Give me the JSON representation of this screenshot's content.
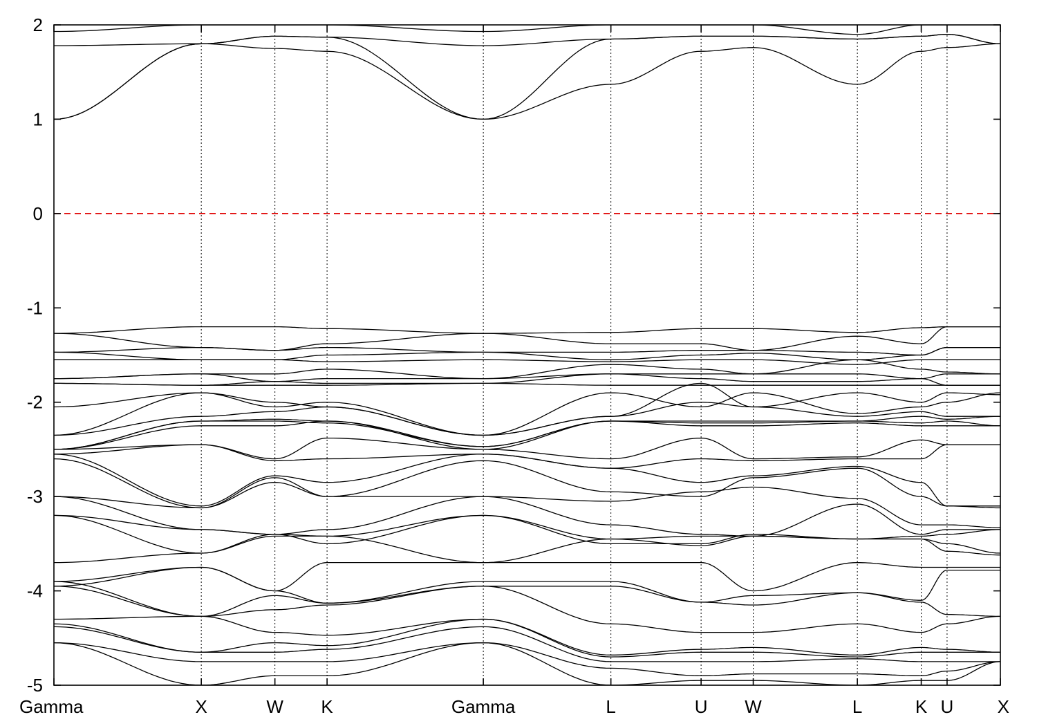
{
  "chart_data": {
    "type": "line",
    "title": "",
    "xlabel": "",
    "ylabel": "",
    "ylim": [
      -5,
      2
    ],
    "yticks": [
      "2",
      "1",
      "0",
      "-1",
      "-2",
      "-3",
      "-4",
      "-5"
    ],
    "xlim": [
      0,
      1
    ],
    "high_symmetry_points": [
      {
        "label": "Gamma",
        "x": 0.0
      },
      {
        "label": "X",
        "x": 0.1557
      },
      {
        "label": "W",
        "x": 0.2335
      },
      {
        "label": "K",
        "x": 0.2886
      },
      {
        "label": "Gamma",
        "x": 0.4537
      },
      {
        "label": "L",
        "x": 0.5885
      },
      {
        "label": "U",
        "x": 0.6838
      },
      {
        "label": "W",
        "x": 0.7389
      },
      {
        "label": "L",
        "x": 0.8489
      },
      {
        "label": "K",
        "x": 0.9164
      },
      {
        "label": "U",
        "x": 0.9437
      },
      {
        "label": "X",
        "x": 1.0
      }
    ],
    "fermi_level": {
      "value": 0,
      "color": "#e00000",
      "style": "dashed"
    },
    "grid": "vertical dotted lines at high-symmetry points",
    "series": [
      {
        "values": [
          1.0,
          1.8,
          1.75,
          1.72,
          1.0,
          1.37,
          1.72,
          1.76,
          1.37,
          1.72,
          1.76,
          1.8
        ]
      },
      {
        "values": [
          1.0,
          1.8,
          1.88,
          1.87,
          1.0,
          1.85,
          1.88,
          1.88,
          1.85,
          1.88,
          1.9,
          1.8
        ]
      },
      {
        "values": [
          1.78,
          1.8,
          1.88,
          1.87,
          1.78,
          1.85,
          1.88,
          1.88,
          1.85,
          1.88,
          1.9,
          1.8
        ]
      },
      {
        "values": [
          1.93,
          2.0,
          2.0,
          2.0,
          1.93,
          2.0,
          2.0,
          2.0,
          1.9,
          2.0,
          2.0,
          2.0
        ]
      },
      {
        "values": [
          -1.27,
          -1.2,
          -1.2,
          -1.22,
          -1.27,
          -1.26,
          -1.22,
          -1.22,
          -1.26,
          -1.21,
          -1.2,
          -1.2
        ]
      },
      {
        "values": [
          -1.27,
          -1.42,
          -1.45,
          -1.38,
          -1.27,
          -1.38,
          -1.38,
          -1.45,
          -1.3,
          -1.38,
          -1.2,
          -1.2
        ]
      },
      {
        "values": [
          -1.47,
          -1.42,
          -1.45,
          -1.42,
          -1.47,
          -1.47,
          -1.45,
          -1.45,
          -1.47,
          -1.5,
          -1.42,
          -1.42
        ]
      },
      {
        "values": [
          -1.47,
          -1.55,
          -1.55,
          -1.5,
          -1.47,
          -1.55,
          -1.5,
          -1.48,
          -1.55,
          -1.5,
          -1.42,
          -1.42
        ]
      },
      {
        "values": [
          -1.55,
          -1.55,
          -1.55,
          -1.57,
          -1.55,
          -1.57,
          -1.55,
          -1.55,
          -1.6,
          -1.55,
          -1.55,
          -1.55
        ]
      },
      {
        "values": [
          -1.75,
          -1.7,
          -1.7,
          -1.65,
          -1.75,
          -1.6,
          -1.65,
          -1.7,
          -1.55,
          -1.65,
          -1.68,
          -1.7
        ]
      },
      {
        "values": [
          -1.75,
          -1.7,
          -1.78,
          -1.75,
          -1.75,
          -1.7,
          -1.7,
          -1.7,
          -1.7,
          -1.75,
          -1.7,
          -1.7
        ]
      },
      {
        "values": [
          -1.8,
          -1.82,
          -1.78,
          -1.8,
          -1.8,
          -1.7,
          -1.75,
          -1.78,
          -1.78,
          -1.75,
          -1.82,
          -1.82
        ]
      },
      {
        "values": [
          -1.8,
          -1.82,
          -1.82,
          -1.82,
          -1.8,
          -1.82,
          -1.82,
          -1.82,
          -1.82,
          -1.82,
          -1.82,
          -1.82
        ]
      },
      {
        "values": [
          -2.05,
          -1.9,
          -2.0,
          -2.05,
          -2.35,
          -1.9,
          -2.05,
          -1.9,
          -2.12,
          -2.05,
          -2.0,
          -1.9
        ]
      },
      {
        "values": [
          -2.35,
          -1.9,
          -2.05,
          -2.0,
          -2.35,
          -2.15,
          -1.8,
          -2.05,
          -1.9,
          -2.0,
          -1.9,
          -1.92
        ]
      },
      {
        "values": [
          -2.35,
          -2.15,
          -2.1,
          -2.05,
          -2.35,
          -2.15,
          -2.0,
          -2.05,
          -2.15,
          -2.1,
          -2.15,
          -2.15
        ]
      },
      {
        "values": [
          -2.5,
          -2.2,
          -2.18,
          -2.2,
          -2.47,
          -2.2,
          -2.2,
          -2.2,
          -2.2,
          -2.15,
          -2.18,
          -2.15
        ]
      },
      {
        "values": [
          -2.5,
          -2.2,
          -2.2,
          -2.22,
          -2.47,
          -2.2,
          -2.22,
          -2.22,
          -2.2,
          -2.22,
          -2.2,
          -2.25
        ]
      },
      {
        "values": [
          -2.5,
          -2.25,
          -2.25,
          -2.2,
          -2.5,
          -2.2,
          -2.25,
          -2.25,
          -2.22,
          -2.25,
          -2.25,
          -2.25
        ]
      },
      {
        "values": [
          -2.5,
          -2.45,
          -2.6,
          -2.38,
          -2.5,
          -2.6,
          -2.38,
          -2.6,
          -2.58,
          -2.4,
          -2.45,
          -2.45
        ]
      },
      {
        "values": [
          -2.55,
          -2.45,
          -2.62,
          -2.6,
          -2.55,
          -2.7,
          -2.6,
          -2.62,
          -2.6,
          -2.6,
          -2.45,
          -2.45
        ]
      },
      {
        "values": [
          -2.55,
          -3.1,
          -2.78,
          -2.85,
          -2.55,
          -2.7,
          -2.85,
          -2.78,
          -2.68,
          -2.85,
          -3.1,
          -3.1
        ]
      },
      {
        "values": [
          -2.6,
          -3.12,
          -2.8,
          -3.0,
          -2.62,
          -2.95,
          -3.0,
          -2.8,
          -2.7,
          -3.0,
          -3.1,
          -3.12
        ]
      },
      {
        "values": [
          -3.0,
          -3.12,
          -2.85,
          -3.0,
          -3.0,
          -3.05,
          -2.95,
          -2.9,
          -3.02,
          -3.3,
          -3.3,
          -3.33
        ]
      },
      {
        "values": [
          -3.0,
          -3.35,
          -3.4,
          -3.35,
          -3.0,
          -3.3,
          -3.4,
          -3.42,
          -3.08,
          -3.4,
          -3.35,
          -3.35
        ]
      },
      {
        "values": [
          -3.2,
          -3.35,
          -3.4,
          -3.42,
          -3.2,
          -3.45,
          -3.42,
          -3.42,
          -3.45,
          -3.42,
          -3.4,
          -3.35
        ]
      },
      {
        "values": [
          -3.2,
          -3.6,
          -3.4,
          -3.5,
          -3.2,
          -3.5,
          -3.5,
          -3.4,
          -3.45,
          -3.45,
          -3.5,
          -3.6
        ]
      },
      {
        "values": [
          -3.7,
          -3.6,
          -3.42,
          -3.42,
          -3.7,
          -3.45,
          -3.52,
          -3.42,
          -3.45,
          -3.45,
          -3.58,
          -3.62
        ]
      },
      {
        "values": [
          -3.9,
          -3.75,
          -4.0,
          -3.7,
          -3.7,
          -3.7,
          -3.7,
          -4.0,
          -3.7,
          -3.75,
          -3.75,
          -3.75
        ]
      },
      {
        "values": [
          -3.95,
          -3.75,
          -4.0,
          -4.13,
          -3.9,
          -3.9,
          -4.12,
          -4.05,
          -4.02,
          -4.1,
          -3.78,
          -3.78
        ]
      },
      {
        "values": [
          -3.95,
          -4.27,
          -4.05,
          -4.13,
          -3.95,
          -3.95,
          -4.12,
          -4.15,
          -4.02,
          -4.12,
          -4.25,
          -4.27
        ]
      },
      {
        "values": [
          -3.9,
          -4.27,
          -4.2,
          -4.15,
          -3.95,
          -4.35,
          -4.44,
          -4.44,
          -4.35,
          -4.44,
          -4.35,
          -4.27
        ]
      },
      {
        "values": [
          -4.3,
          -4.27,
          -4.44,
          -4.47,
          -4.3,
          -4.68,
          -4.62,
          -4.6,
          -4.68,
          -4.6,
          -4.62,
          -4.65
        ]
      },
      {
        "values": [
          -4.35,
          -4.65,
          -4.55,
          -4.58,
          -4.3,
          -4.7,
          -4.65,
          -4.65,
          -4.7,
          -4.65,
          -4.65,
          -4.65
        ]
      },
      {
        "values": [
          -4.38,
          -4.65,
          -4.65,
          -4.62,
          -4.38,
          -4.75,
          -4.75,
          -4.75,
          -4.72,
          -4.75,
          -4.75,
          -4.75
        ]
      },
      {
        "values": [
          -4.55,
          -4.75,
          -4.75,
          -4.75,
          -4.55,
          -4.82,
          -4.9,
          -4.88,
          -4.88,
          -4.9,
          -4.85,
          -4.75
        ]
      },
      {
        "values": [
          -4.55,
          -5.0,
          -4.9,
          -4.9,
          -4.55,
          -5.0,
          -4.95,
          -4.95,
          -5.0,
          -4.95,
          -4.95,
          -4.75
        ]
      }
    ]
  }
}
